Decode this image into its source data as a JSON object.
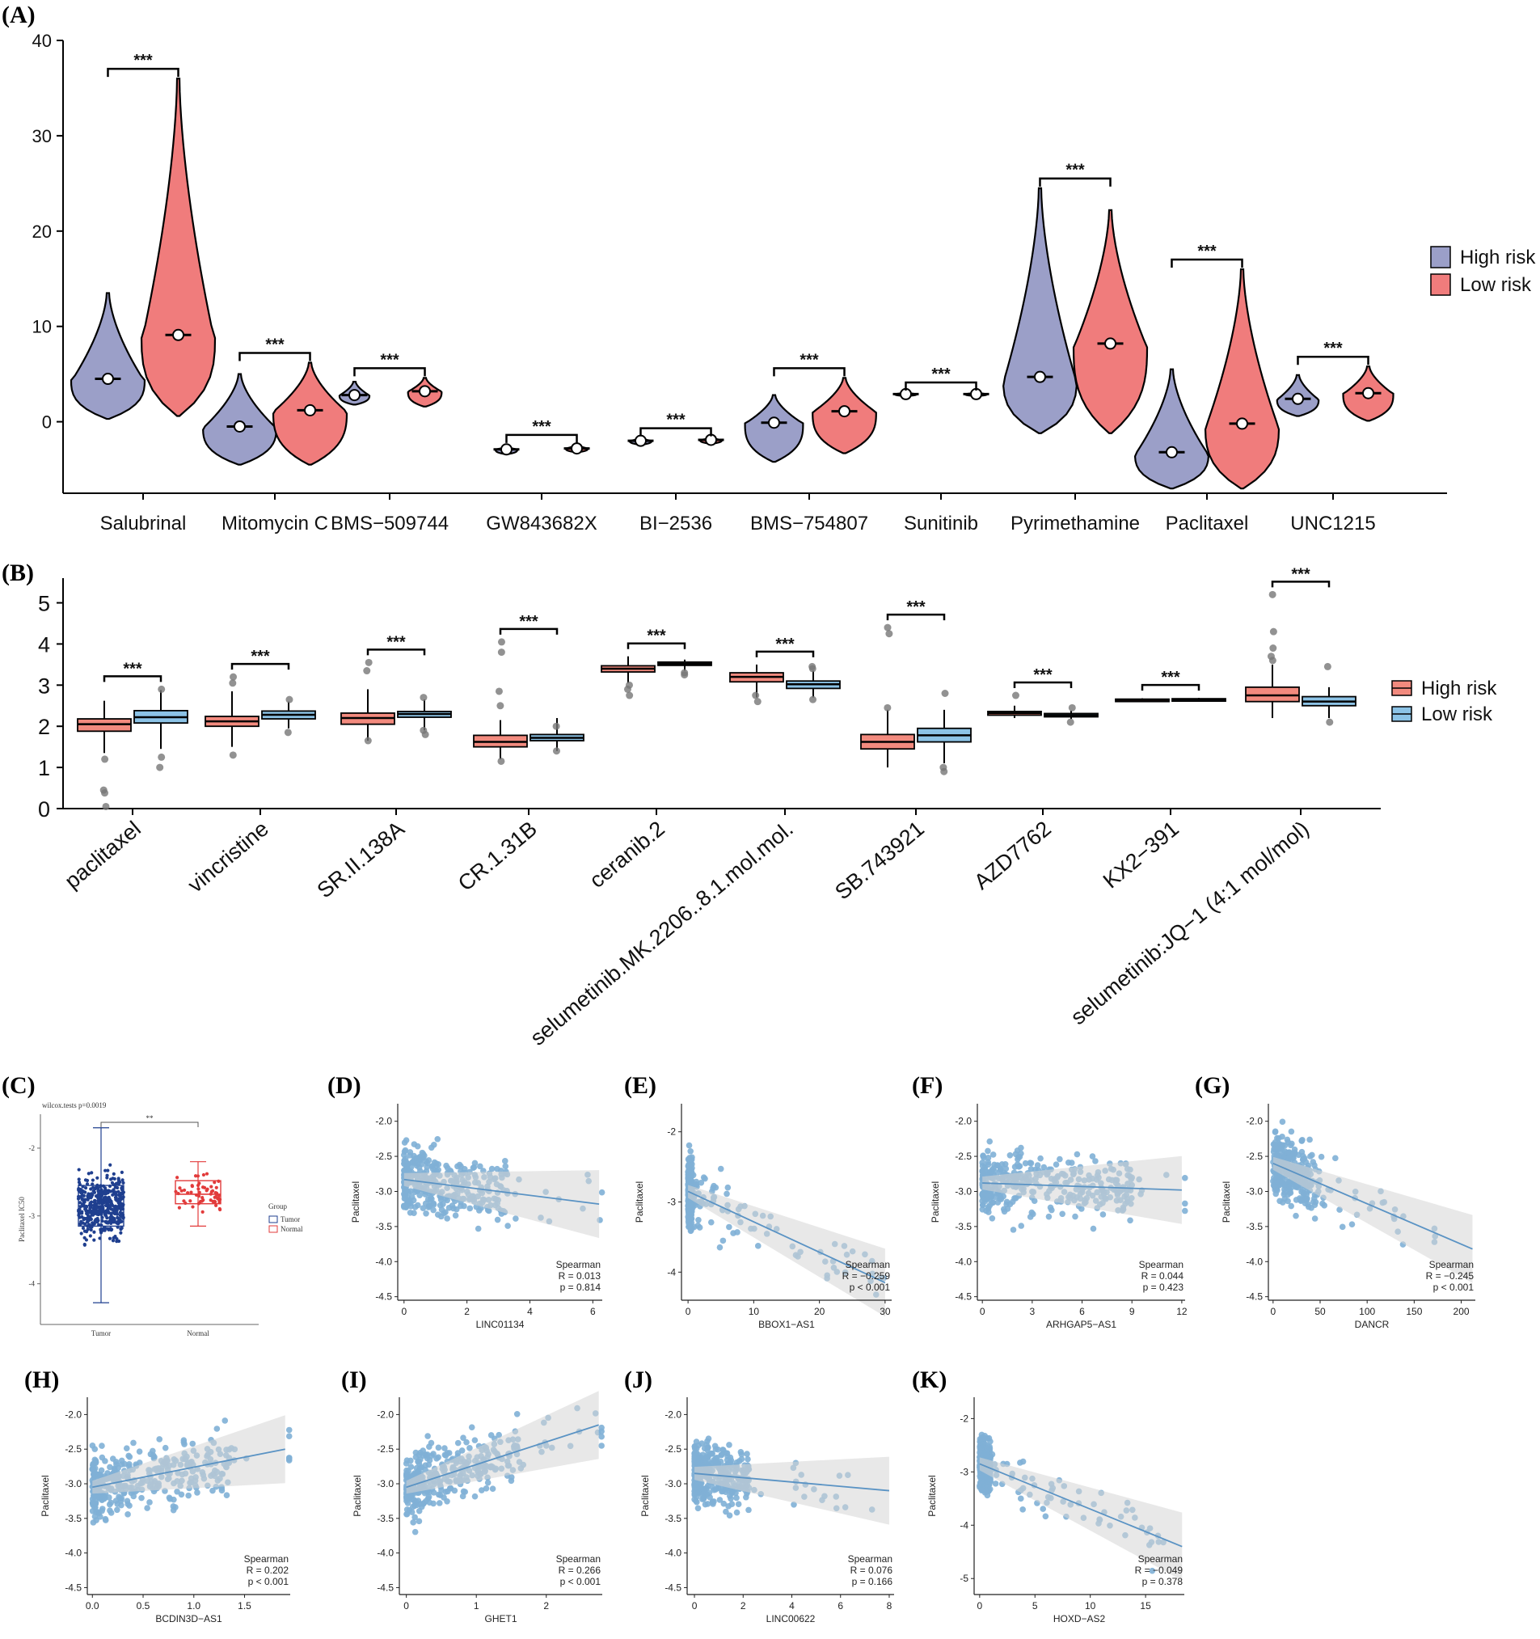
{
  "panels": {
    "A": "(A)",
    "B": "(B)",
    "C": "(C)",
    "D": "(D)",
    "E": "(E)",
    "F": "(F)",
    "G": "(G)",
    "H": "(H)",
    "I": "(I)",
    "J": "(J)",
    "K": "(K)"
  },
  "colors": {
    "high": "#9b9fc8",
    "low": "#f07c7c",
    "highB": "#f28a7e",
    "lowB": "#8cc3e6",
    "scatter": "#7fb0d6",
    "line": "#5a93c4",
    "band": "#d6d6d6",
    "tumor": "#1f3f8f",
    "normal": "#e23b3b"
  },
  "chart_data": [
    {
      "id": "A",
      "type": "violin",
      "ylim": [
        -7.5,
        40
      ],
      "yticks": [
        0,
        10,
        20,
        30,
        40
      ],
      "legend": [
        {
          "key": "high",
          "label": "High risk"
        },
        {
          "key": "low",
          "label": "Low risk"
        }
      ],
      "groups": [
        {
          "name": "Salubrinal",
          "sig": "***",
          "high": {
            "min": 0.3,
            "max": 13.5,
            "median": 4.5
          },
          "low": {
            "min": 0.6,
            "max": 36,
            "median": 9.1
          }
        },
        {
          "name": "Mitomycin C",
          "sig": "***",
          "high": {
            "min": -4.5,
            "max": 5,
            "median": -0.5
          },
          "low": {
            "min": -4.5,
            "max": 6.2,
            "median": 1.2
          }
        },
        {
          "name": "BMS−509744",
          "sig": "***",
          "high": {
            "min": 1.8,
            "max": 4.2,
            "median": 2.8
          },
          "low": {
            "min": 1.6,
            "max": 4.6,
            "median": 3.2
          }
        },
        {
          "name": "GW843682X",
          "sig": "***",
          "high": {
            "min": -3.4,
            "max": -2.6,
            "median": -2.9
          },
          "low": {
            "min": -3.2,
            "max": -2.4,
            "median": -2.8
          }
        },
        {
          "name": "BI−2536",
          "sig": "***",
          "high": {
            "min": -2.4,
            "max": -1.7,
            "median": -2.0
          },
          "low": {
            "min": -2.3,
            "max": -1.7,
            "median": -1.9
          }
        },
        {
          "name": "BMS−754807",
          "sig": "***",
          "high": {
            "min": -4.2,
            "max": 2.8,
            "median": -0.1
          },
          "low": {
            "min": -3.3,
            "max": 4.6,
            "median": 1.1
          }
        },
        {
          "name": "Sunitinib",
          "sig": "***",
          "high": {
            "min": 2.7,
            "max": 3.1,
            "median": 2.9
          },
          "low": {
            "min": 2.7,
            "max": 3.1,
            "median": 2.9
          }
        },
        {
          "name": "Pyrimethamine",
          "sig": "***",
          "high": {
            "min": -1.2,
            "max": 24.5,
            "median": 4.7
          },
          "low": {
            "min": -1.2,
            "max": 22.2,
            "median": 8.2
          }
        },
        {
          "name": "Paclitaxel",
          "sig": "***",
          "high": {
            "min": -7,
            "max": 5.5,
            "median": -3.2
          },
          "low": {
            "min": -7,
            "max": 16,
            "median": -0.2
          }
        },
        {
          "name": "UNC1215",
          "sig": "***",
          "high": {
            "min": 0.6,
            "max": 4.9,
            "median": 2.4
          },
          "low": {
            "min": 0.1,
            "max": 5.8,
            "median": 3.0
          }
        }
      ]
    },
    {
      "id": "B",
      "type": "box",
      "ylim": [
        0,
        5.6
      ],
      "yticks": [
        0,
        1,
        2,
        3,
        4,
        5
      ],
      "legend": [
        {
          "key": "highB",
          "label": "High risk"
        },
        {
          "key": "lowB",
          "label": "Low risk"
        }
      ],
      "groups": [
        {
          "name": "paclitaxel",
          "sig": "***",
          "high": {
            "q1": 1.88,
            "med": 2.05,
            "q3": 2.18,
            "wl": 1.35,
            "wh": 2.62,
            "out": [
              1.2,
              0.45,
              0.38,
              0.05
            ]
          },
          "low": {
            "q1": 2.08,
            "med": 2.22,
            "q3": 2.38,
            "wl": 1.45,
            "wh": 2.88,
            "out": [
              2.9,
              1.25,
              1.0
            ]
          }
        },
        {
          "name": "vincristine",
          "sig": "***",
          "high": {
            "q1": 2.0,
            "med": 2.12,
            "q3": 2.24,
            "wl": 1.5,
            "wh": 2.85,
            "out": [
              3.2,
              3.05,
              1.3
            ]
          },
          "low": {
            "q1": 2.18,
            "med": 2.28,
            "q3": 2.37,
            "wl": 1.95,
            "wh": 2.6,
            "out": [
              2.65,
              1.85
            ]
          }
        },
        {
          "name": "SR.II.138A",
          "sig": "***",
          "high": {
            "q1": 2.05,
            "med": 2.2,
            "q3": 2.32,
            "wl": 1.65,
            "wh": 2.9,
            "out": [
              3.55,
              3.35,
              1.65
            ]
          },
          "low": {
            "q1": 2.22,
            "med": 2.3,
            "q3": 2.36,
            "wl": 1.9,
            "wh": 2.65,
            "out": [
              2.7,
              1.9,
              1.8
            ]
          }
        },
        {
          "name": "CR.1.31B",
          "sig": "***",
          "high": {
            "q1": 1.5,
            "med": 1.62,
            "q3": 1.78,
            "wl": 1.2,
            "wh": 2.15,
            "out": [
              4.05,
              3.8,
              2.85,
              2.5,
              1.15
            ]
          },
          "low": {
            "q1": 1.65,
            "med": 1.72,
            "q3": 1.8,
            "wl": 1.4,
            "wh": 2.2,
            "out": [
              1.4,
              2.0
            ]
          }
        },
        {
          "name": "ceranib.2",
          "sig": "***",
          "high": {
            "q1": 3.32,
            "med": 3.4,
            "q3": 3.47,
            "wl": 3.05,
            "wh": 3.7,
            "out": [
              2.9,
              2.75,
              3.0
            ]
          },
          "low": {
            "q1": 3.48,
            "med": 3.52,
            "q3": 3.56,
            "wl": 3.35,
            "wh": 3.62,
            "out": [
              3.3,
              3.25
            ]
          }
        },
        {
          "name": "selumetinib.MK.2206..8.1.mol.mol.",
          "sig": "***",
          "high": {
            "q1": 3.08,
            "med": 3.2,
            "q3": 3.3,
            "wl": 2.7,
            "wh": 3.5,
            "out": [
              2.6,
              2.75
            ]
          },
          "low": {
            "q1": 2.92,
            "med": 3.02,
            "q3": 3.1,
            "wl": 2.7,
            "wh": 3.35,
            "out": [
              3.45,
              3.4,
              2.65
            ]
          }
        },
        {
          "name": "SB.743921",
          "sig": "***",
          "high": {
            "q1": 1.45,
            "med": 1.62,
            "q3": 1.8,
            "wl": 1.0,
            "wh": 2.4,
            "out": [
              4.4,
              4.25,
              2.45
            ]
          },
          "low": {
            "q1": 1.62,
            "med": 1.78,
            "q3": 1.95,
            "wl": 1.1,
            "wh": 2.4,
            "out": [
              2.8,
              1.0,
              0.9
            ]
          }
        },
        {
          "name": "AZD7762",
          "sig": "***",
          "high": {
            "q1": 2.27,
            "med": 2.32,
            "q3": 2.36,
            "wl": 2.2,
            "wh": 2.5,
            "out": [
              2.75
            ]
          },
          "low": {
            "q1": 2.23,
            "med": 2.27,
            "q3": 2.31,
            "wl": 2.18,
            "wh": 2.38,
            "out": [
              2.45,
              2.1
            ]
          }
        },
        {
          "name": "KX2−391",
          "sig": "***",
          "high": {
            "q1": 2.62,
            "med": 2.64,
            "q3": 2.66,
            "wl": 2.6,
            "wh": 2.68,
            "out": []
          },
          "low": {
            "q1": 2.63,
            "med": 2.65,
            "q3": 2.67,
            "wl": 2.61,
            "wh": 2.69,
            "out": []
          }
        },
        {
          "name": "selumetinib:JQ−1 (4:1 mol/mol)",
          "sig": "***",
          "high": {
            "q1": 2.6,
            "med": 2.75,
            "q3": 2.95,
            "wl": 2.2,
            "wh": 3.5,
            "out": [
              5.2,
              4.3,
              3.9,
              3.7,
              3.6
            ]
          },
          "low": {
            "q1": 2.5,
            "med": 2.6,
            "q3": 2.72,
            "wl": 2.2,
            "wh": 2.95,
            "out": [
              3.45,
              2.1
            ]
          }
        }
      ]
    },
    {
      "id": "C",
      "type": "box-jitter",
      "title": "wilcox.tests p=0.0019",
      "sig": "**",
      "ylabel": "Paclitaxel IC50",
      "yticks": [
        -2,
        -3,
        -4
      ],
      "ylim": [
        -4.6,
        -1.5
      ],
      "legend_title": "Group",
      "groups": [
        {
          "key": "tumor",
          "name": "Tumor",
          "q1": -3.15,
          "med": -2.85,
          "q3": -2.55,
          "wl": -4.28,
          "wh": -1.7,
          "min": -4.55,
          "max": -1.7
        },
        {
          "key": "normal",
          "name": "Normal",
          "q1": -2.82,
          "med": -2.68,
          "q3": -2.48,
          "wl": -3.15,
          "wh": -2.2,
          "min": -3.3,
          "max": -2.15
        }
      ]
    },
    {
      "id": "D",
      "type": "scatter",
      "ylabel": "Paclitaxel",
      "xlabel": "LINC01134",
      "xlim": [
        -0.2,
        6.3
      ],
      "ylim": [
        -4.55,
        -1.75
      ],
      "xticks": [
        0,
        2,
        4,
        6
      ],
      "yticks": [
        -2.0,
        -2.5,
        -3.0,
        -3.5,
        -4.0,
        -4.5
      ],
      "ytick_labels": [
        "-2.0",
        "-2.5",
        "-3.0",
        "-3.5",
        "-4.0",
        "-4.5"
      ],
      "method": "Spearman",
      "R": "R = 0.013",
      "p": "p = 0.814",
      "fit": [
        [
          0,
          -2.83
        ],
        [
          6.2,
          -3.18
        ]
      ],
      "xmax_cluster": 2.2,
      "dist": "A"
    },
    {
      "id": "E",
      "type": "scatter",
      "ylabel": "Paclitaxel",
      "xlabel": "BBOX1−AS1",
      "xlim": [
        -1,
        31
      ],
      "ylim": [
        -4.4,
        -1.6
      ],
      "xticks": [
        0,
        10,
        20,
        30
      ],
      "yticks": [
        -2,
        -3,
        -4
      ],
      "ytick_labels": [
        "-2",
        "-3",
        "-4"
      ],
      "method": "Spearman",
      "R": "R = −0.259",
      "p": "p < 0.001",
      "fit": [
        [
          0,
          -2.85
        ],
        [
          30,
          -4.15
        ]
      ],
      "xmax_cluster": 0.6,
      "dist": "E"
    },
    {
      "id": "F",
      "type": "scatter",
      "ylabel": "Paclitaxel",
      "xlabel": "ARHGAP5−AS1",
      "xlim": [
        -0.3,
        12.2
      ],
      "ylim": [
        -4.55,
        -1.75
      ],
      "xticks": [
        0,
        3,
        6,
        9,
        12
      ],
      "yticks": [
        -2.0,
        -2.5,
        -3.0,
        -3.5,
        -4.0,
        -4.5
      ],
      "ytick_labels": [
        "-2.0",
        "-2.5",
        "-3.0",
        "-3.5",
        "-4.0",
        "-4.5"
      ],
      "method": "Spearman",
      "R": "R = 0.044",
      "p": "p = 0.423",
      "fit": [
        [
          0,
          -2.88
        ],
        [
          12,
          -2.98
        ]
      ],
      "xmax_cluster": 6,
      "dist": "F"
    },
    {
      "id": "G",
      "type": "scatter",
      "ylabel": "Paclitaxel",
      "xlabel": "DANCR",
      "xlim": [
        -5,
        215
      ],
      "ylim": [
        -4.55,
        -1.75
      ],
      "xticks": [
        0,
        50,
        100,
        150,
        200
      ],
      "yticks": [
        -2.0,
        -2.5,
        -3.0,
        -3.5,
        -4.0,
        -4.5
      ],
      "ytick_labels": [
        "-2.0",
        "-2.5",
        "-3.0",
        "-3.5",
        "-4.0",
        "-4.5"
      ],
      "method": "Spearman",
      "R": "R = −0.245",
      "p": "p < 0.001",
      "fit": [
        [
          0,
          -2.6
        ],
        [
          212,
          -3.82
        ]
      ],
      "xmax_cluster": 60,
      "dist": "G"
    },
    {
      "id": "H",
      "type": "scatter",
      "ylabel": "Paclitaxel",
      "xlabel": "BCDIN3D−AS1",
      "xlim": [
        -0.05,
        1.95
      ],
      "ylim": [
        -4.6,
        -1.75
      ],
      "xticks": [
        0.0,
        0.5,
        1.0,
        1.5
      ],
      "yticks": [
        -2.0,
        -2.5,
        -3.0,
        -3.5,
        -4.0,
        -4.5
      ],
      "ytick_labels": [
        "-2.0",
        "-2.5",
        "-3.0",
        "-3.5",
        "-4.0",
        "-4.5"
      ],
      "xtick_labels": [
        "0.0",
        "0.5",
        "1.0",
        "1.5"
      ],
      "method": "Spearman",
      "R": "R = 0.202",
      "p": "p < 0.001",
      "fit": [
        [
          0,
          -3.05
        ],
        [
          1.9,
          -2.5
        ]
      ],
      "xmax_cluster": 0.9,
      "dist": "H"
    },
    {
      "id": "I",
      "type": "scatter",
      "ylabel": "Paclitaxel",
      "xlabel": "GHET1",
      "xlim": [
        -0.1,
        2.8
      ],
      "ylim": [
        -4.6,
        -1.75
      ],
      "xticks": [
        0,
        1,
        2
      ],
      "yticks": [
        -2.0,
        -2.5,
        -3.0,
        -3.5,
        -4.0,
        -4.5
      ],
      "ytick_labels": [
        "-2.0",
        "-2.5",
        "-3.0",
        "-3.5",
        "-4.0",
        "-4.5"
      ],
      "method": "Spearman",
      "R": "R = 0.266",
      "p": "p < 0.001",
      "fit": [
        [
          0,
          -3.05
        ],
        [
          2.75,
          -2.15
        ]
      ],
      "xmax_cluster": 1.1,
      "dist": "I"
    },
    {
      "id": "J",
      "type": "scatter",
      "ylabel": "Paclitaxel",
      "xlabel": "LINC00622",
      "xlim": [
        -0.3,
        8.2
      ],
      "ylim": [
        -4.6,
        -1.75
      ],
      "xticks": [
        0,
        2,
        4,
        6,
        8
      ],
      "yticks": [
        -2.0,
        -2.5,
        -3.0,
        -3.5,
        -4.0,
        -4.5
      ],
      "ytick_labels": [
        "-2.0",
        "-2.5",
        "-3.0",
        "-3.5",
        "-4.0",
        "-4.5"
      ],
      "method": "Spearman",
      "R": "R = 0.076",
      "p": "p = 0.166",
      "fit": [
        [
          0,
          -2.85
        ],
        [
          8,
          -3.1
        ]
      ],
      "xmax_cluster": 1.5,
      "dist": "J"
    },
    {
      "id": "K",
      "type": "scatter",
      "ylabel": "Paclitaxel",
      "xlabel": "HOXD−AS2",
      "xlim": [
        -0.5,
        18.5
      ],
      "ylim": [
        -5.3,
        -1.6
      ],
      "xticks": [
        0,
        5,
        10,
        15
      ],
      "yticks": [
        -2,
        -3,
        -4,
        -5
      ],
      "ytick_labels": [
        "-2",
        "-3",
        "-4",
        "-5"
      ],
      "method": "Spearman",
      "R": "R = −0.049",
      "p": "p = 0.378",
      "fit": [
        [
          0,
          -2.85
        ],
        [
          18.3,
          -4.4
        ]
      ],
      "xmax_cluster": 1.0,
      "dist": "K"
    }
  ]
}
